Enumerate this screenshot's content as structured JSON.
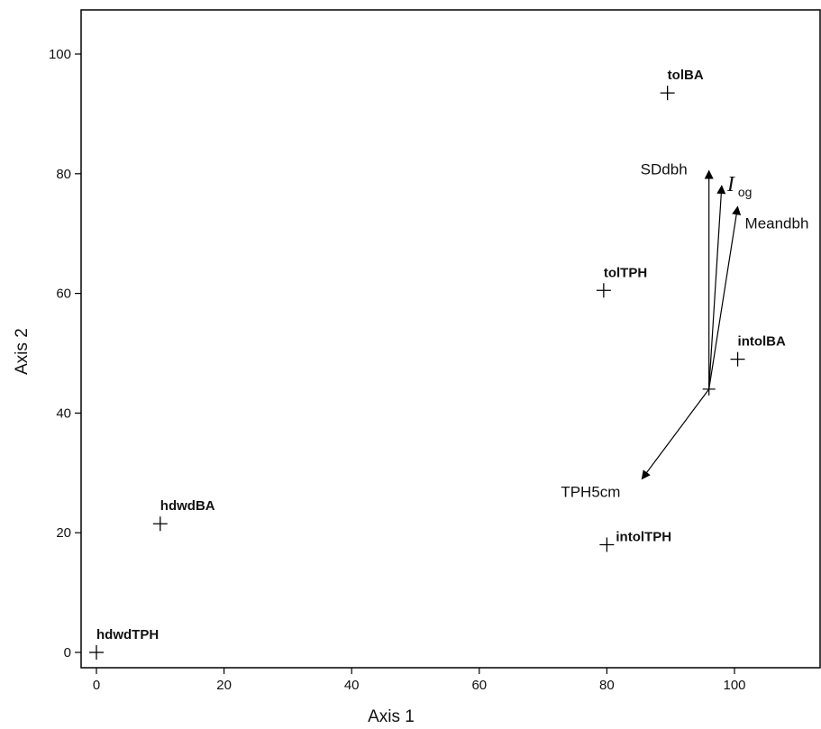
{
  "chart_data": {
    "type": "scatter",
    "xlabel": "Axis 1",
    "ylabel": "Axis 2",
    "xlim": [
      -2,
      114
    ],
    "ylim": [
      -2,
      107
    ],
    "xticks": [
      0,
      20,
      40,
      60,
      80,
      100
    ],
    "yticks": [
      0,
      20,
      40,
      60,
      80,
      100
    ],
    "grid": false,
    "points": [
      {
        "label": "tolBA",
        "x": 89.5,
        "y": 93.5
      },
      {
        "label": "tolTPH",
        "x": 79.5,
        "y": 60.5
      },
      {
        "label": "intolBA",
        "x": 100.5,
        "y": 49
      },
      {
        "label": "hdwdBA",
        "x": 10,
        "y": 21.5
      },
      {
        "label": "intolTPH",
        "x": 80,
        "y": 18
      },
      {
        "label": "hdwdTPH",
        "x": 0,
        "y": 0
      }
    ],
    "vectors": {
      "origin": {
        "x": 96,
        "y": 44
      },
      "items": [
        {
          "label": "SDdbh",
          "x": 96,
          "y": 80.5
        },
        {
          "label": "I",
          "subscript": "og",
          "x": 98,
          "y": 78
        },
        {
          "label": "Meandbh",
          "x": 100.5,
          "y": 74.5
        },
        {
          "label": "TPH5cm",
          "x": 85.5,
          "y": 29
        }
      ]
    }
  }
}
